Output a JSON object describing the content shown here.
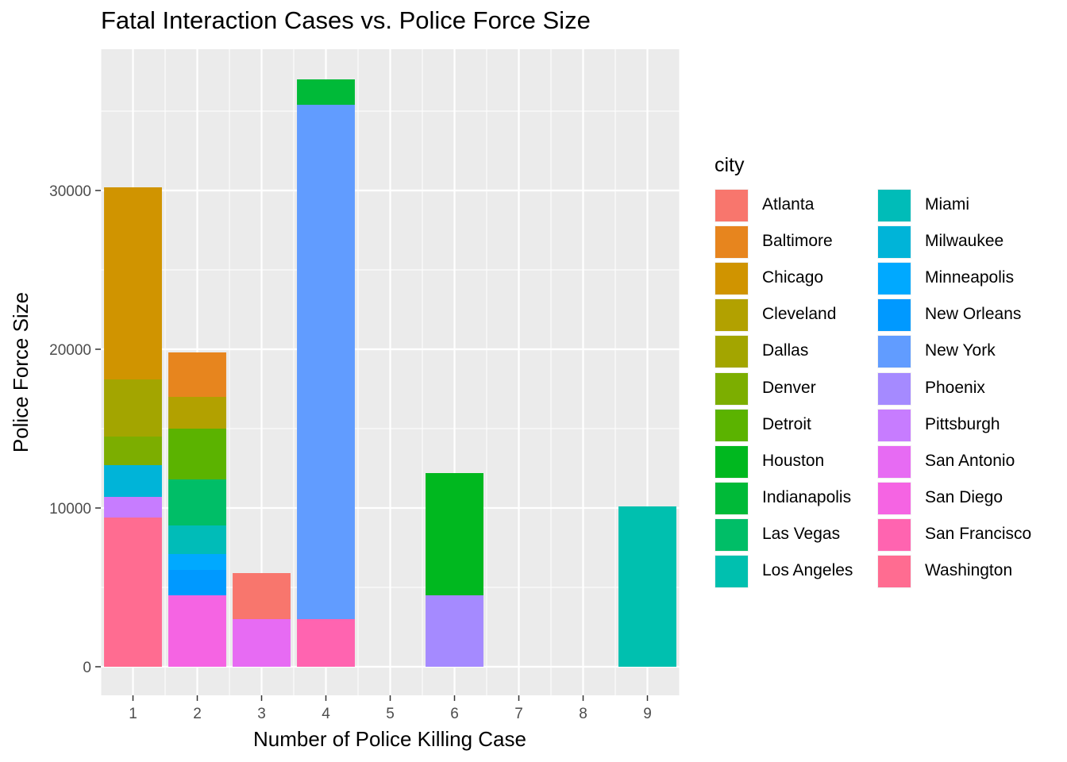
{
  "chart_data": {
    "type": "bar",
    "stacked": true,
    "title": "Fatal Interaction Cases vs. Police Force Size",
    "xlabel": "Number of Police Killing Case",
    "ylabel": "Police Force Size",
    "x_ticks": [
      "1",
      "2",
      "3",
      "4",
      "5",
      "6",
      "7",
      "8",
      "9"
    ],
    "y_ticks": [
      "0",
      "10000",
      "20000",
      "30000"
    ],
    "ylim": [
      -1800,
      38900
    ],
    "xlim": [
      0.5,
      9.5
    ],
    "grid": true,
    "legend": {
      "title": "city",
      "position": "right",
      "columns": 2,
      "entries": [
        {
          "name": "Atlanta",
          "color": "#F8766D"
        },
        {
          "name": "Baltimore",
          "color": "#E7851E"
        },
        {
          "name": "Chicago",
          "color": "#D09400"
        },
        {
          "name": "Cleveland",
          "color": "#B2A100"
        },
        {
          "name": "Dallas",
          "color": "#A3A500"
        },
        {
          "name": "Denver",
          "color": "#7CAE00"
        },
        {
          "name": "Detroit",
          "color": "#5BB300"
        },
        {
          "name": "Houston",
          "color": "#00B81F"
        },
        {
          "name": "Indianapolis",
          "color": "#00BA38"
        },
        {
          "name": "Las Vegas",
          "color": "#00BE67"
        },
        {
          "name": "Los Angeles",
          "color": "#00C0AF"
        },
        {
          "name": "Miami",
          "color": "#00BCB8"
        },
        {
          "name": "Milwaukee",
          "color": "#00B4D8"
        },
        {
          "name": "Minneapolis",
          "color": "#00A9FF"
        },
        {
          "name": "New Orleans",
          "color": "#0099FF"
        },
        {
          "name": "New York",
          "color": "#619CFF"
        },
        {
          "name": "Phoenix",
          "color": "#A58AFF"
        },
        {
          "name": "Pittsburgh",
          "color": "#C77CFF"
        },
        {
          "name": "San Antonio",
          "color": "#E76BF3"
        },
        {
          "name": "San Diego",
          "color": "#F564E3"
        },
        {
          "name": "San Francisco",
          "color": "#FF64B0"
        },
        {
          "name": "Washington",
          "color": "#FF6C91"
        }
      ]
    },
    "series": [
      {
        "name": "Atlanta",
        "points": [
          {
            "x": 3,
            "value": 2900
          }
        ]
      },
      {
        "name": "Baltimore",
        "points": [
          {
            "x": 2,
            "value": 2800
          }
        ]
      },
      {
        "name": "Chicago",
        "points": [
          {
            "x": 1,
            "value": 12100
          }
        ]
      },
      {
        "name": "Cleveland",
        "points": [
          {
            "x": 2,
            "value": 2000
          }
        ]
      },
      {
        "name": "Dallas",
        "points": [
          {
            "x": 1,
            "value": 3600
          }
        ]
      },
      {
        "name": "Denver",
        "points": [
          {
            "x": 1,
            "value": 1800
          }
        ]
      },
      {
        "name": "Detroit",
        "points": [
          {
            "x": 2,
            "value": 3200
          }
        ]
      },
      {
        "name": "Houston",
        "points": [
          {
            "x": 6,
            "value": 7700
          }
        ]
      },
      {
        "name": "Indianapolis",
        "points": [
          {
            "x": 4,
            "value": 1600
          }
        ]
      },
      {
        "name": "Las Vegas",
        "points": [
          {
            "x": 2,
            "value": 2900
          }
        ]
      },
      {
        "name": "Los Angeles",
        "points": [
          {
            "x": 9,
            "value": 10100
          }
        ]
      },
      {
        "name": "Miami",
        "points": [
          {
            "x": 2,
            "value": 1800
          }
        ]
      },
      {
        "name": "Milwaukee",
        "points": [
          {
            "x": 1,
            "value": 2000
          }
        ]
      },
      {
        "name": "Minneapolis",
        "points": [
          {
            "x": 2,
            "value": 1000
          }
        ]
      },
      {
        "name": "New Orleans",
        "points": [
          {
            "x": 2,
            "value": 1600
          }
        ]
      },
      {
        "name": "New York",
        "points": [
          {
            "x": 4,
            "value": 32400
          }
        ]
      },
      {
        "name": "Phoenix",
        "points": [
          {
            "x": 6,
            "value": 4500
          }
        ]
      },
      {
        "name": "Pittsburgh",
        "points": [
          {
            "x": 1,
            "value": 1300
          }
        ]
      },
      {
        "name": "San Antonio",
        "points": [
          {
            "x": 3,
            "value": 3000
          }
        ]
      },
      {
        "name": "San Diego",
        "points": [
          {
            "x": 2,
            "value": 4500
          }
        ]
      },
      {
        "name": "San Francisco",
        "points": [
          {
            "x": 4,
            "value": 3000
          }
        ]
      },
      {
        "name": "Washington",
        "points": [
          {
            "x": 1,
            "value": 9400
          }
        ]
      }
    ],
    "stack_order_bottom_to_top": {
      "1": [
        "Washington",
        "Pittsburgh",
        "Milwaukee",
        "Denver",
        "Dallas",
        "Chicago"
      ],
      "2": [
        "San Diego",
        "New Orleans",
        "Minneapolis",
        "Miami",
        "Las Vegas",
        "Detroit",
        "Cleveland",
        "Baltimore"
      ],
      "3": [
        "San Antonio",
        "Atlanta"
      ],
      "4": [
        "San Francisco",
        "New York",
        "Indianapolis"
      ],
      "6": [
        "Phoenix",
        "Houston"
      ],
      "9": [
        "Los Angeles"
      ]
    }
  }
}
